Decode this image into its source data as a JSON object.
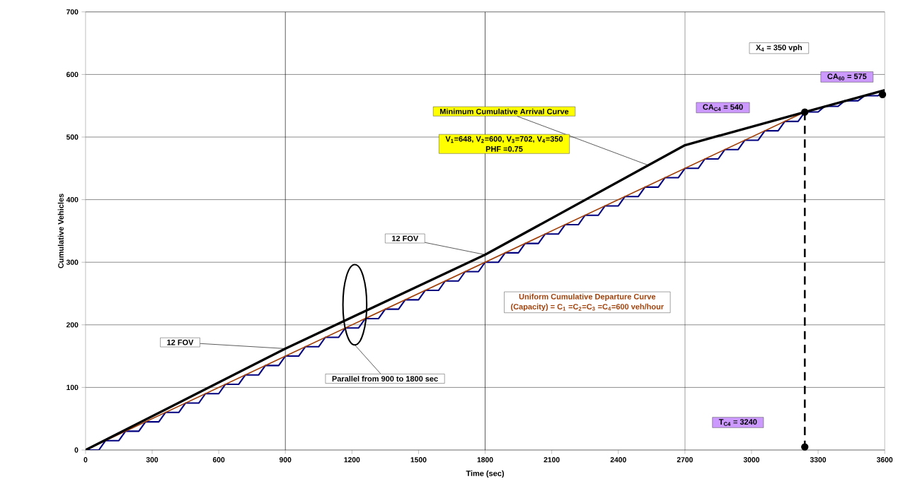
{
  "chart_data": {
    "type": "line",
    "xlabel": "Time (sec)",
    "ylabel": "Cumulative Vehicles",
    "xlim": [
      0,
      3600
    ],
    "ylim": [
      0,
      700
    ],
    "xticks": [
      0,
      300,
      600,
      900,
      1200,
      1500,
      1800,
      2100,
      2400,
      2700,
      3000,
      3300,
      3600
    ],
    "yticks": [
      0,
      100,
      200,
      300,
      400,
      500,
      600,
      700
    ],
    "grid": "y",
    "ref_lines": [
      {
        "axis": "x",
        "value": 900,
        "color": "#000000"
      },
      {
        "axis": "x",
        "value": 1800,
        "color": "#000000"
      },
      {
        "axis": "x",
        "value": 2700,
        "color": "#000000"
      }
    ],
    "series": [
      {
        "color": "#000080",
        "marker": "none",
        "x": [
          0,
          60,
          90,
          150,
          180,
          240,
          270,
          330,
          360,
          420,
          450,
          510,
          540,
          600,
          630,
          690,
          720,
          780,
          810,
          870,
          900,
          960,
          990,
          1050,
          1080,
          1140,
          1170,
          1230,
          1260,
          1320,
          1350,
          1410,
          1440,
          1500,
          1530,
          1590,
          1620,
          1680,
          1710,
          1770,
          1800,
          1860,
          1890,
          1950,
          1980,
          2040,
          2070,
          2130,
          2160,
          2220,
          2250,
          2310,
          2340,
          2400,
          2430,
          2490,
          2520,
          2580,
          2610,
          2670,
          2700,
          2760,
          2790,
          2850,
          2880,
          2940,
          2970,
          3030,
          3060,
          3120,
          3150,
          3210,
          3240,
          3300,
          3330,
          3390,
          3420,
          3480,
          3510,
          3570,
          3600
        ],
        "values": [
          0,
          0,
          15,
          15,
          30,
          30,
          45,
          45,
          60,
          60,
          75,
          75,
          90,
          90,
          105,
          105,
          120,
          120,
          135,
          135,
          150,
          150,
          165,
          165,
          180,
          180,
          195,
          195,
          210,
          210,
          225,
          225,
          240,
          240,
          255,
          255,
          270,
          270,
          285,
          285,
          300,
          300,
          315,
          315,
          330,
          330,
          345,
          345,
          360,
          360,
          375,
          375,
          390,
          390,
          405,
          405,
          420,
          420,
          435,
          435,
          450,
          450,
          465,
          465,
          480,
          480,
          495,
          495,
          510,
          510,
          525,
          525,
          540,
          540,
          549,
          549,
          558,
          558,
          566,
          566,
          575
        ]
      },
      {
        "color": "#a0400a",
        "marker": "none",
        "x": [
          0,
          3240
        ],
        "values": [
          0,
          540
        ]
      },
      {
        "color": "#000000",
        "marker": "none",
        "x": [
          0,
          900,
          1800,
          2700,
          3240,
          3600
        ],
        "values": [
          0,
          162,
          312,
          487,
          540,
          575
        ]
      },
      {
        "color": "#000000",
        "marker": "none",
        "line_style": "dashed",
        "x": [
          3240,
          3240
        ],
        "values": [
          540,
          5
        ]
      },
      {
        "type": "scatter",
        "color": "#000000",
        "marker": "circle",
        "x": [
          3240,
          3240,
          3590
        ],
        "values": [
          540,
          5,
          568
        ]
      }
    ],
    "annotations": [
      {
        "text": "Minimum Cumulative Arrival Curve",
        "x": 2535,
        "y": 455
      },
      "V$_{1}$=648, V$_{2}$=600, V$_{3}$=702, V$_{4}$=350",
      "PHF =0.75",
      "X$_{4}$ = 350 vph",
      "CA$_{60}$ = 575",
      "CA$_{C4}$ = 540",
      "T$_{C4}$ = 3240",
      {
        "text": "12 FOV",
        "x": 900,
        "y": 162
      },
      {
        "text": "12 FOV",
        "x": 1800,
        "y": 312
      },
      "Parallel from 900 to 1800 sec",
      "Uniform Cumulative Departure Curve",
      "(Capacity) = C$_{1}$ =C$_{2}$=C$_{3}$ =C$_{4}$=600 veh/hour"
    ]
  }
}
